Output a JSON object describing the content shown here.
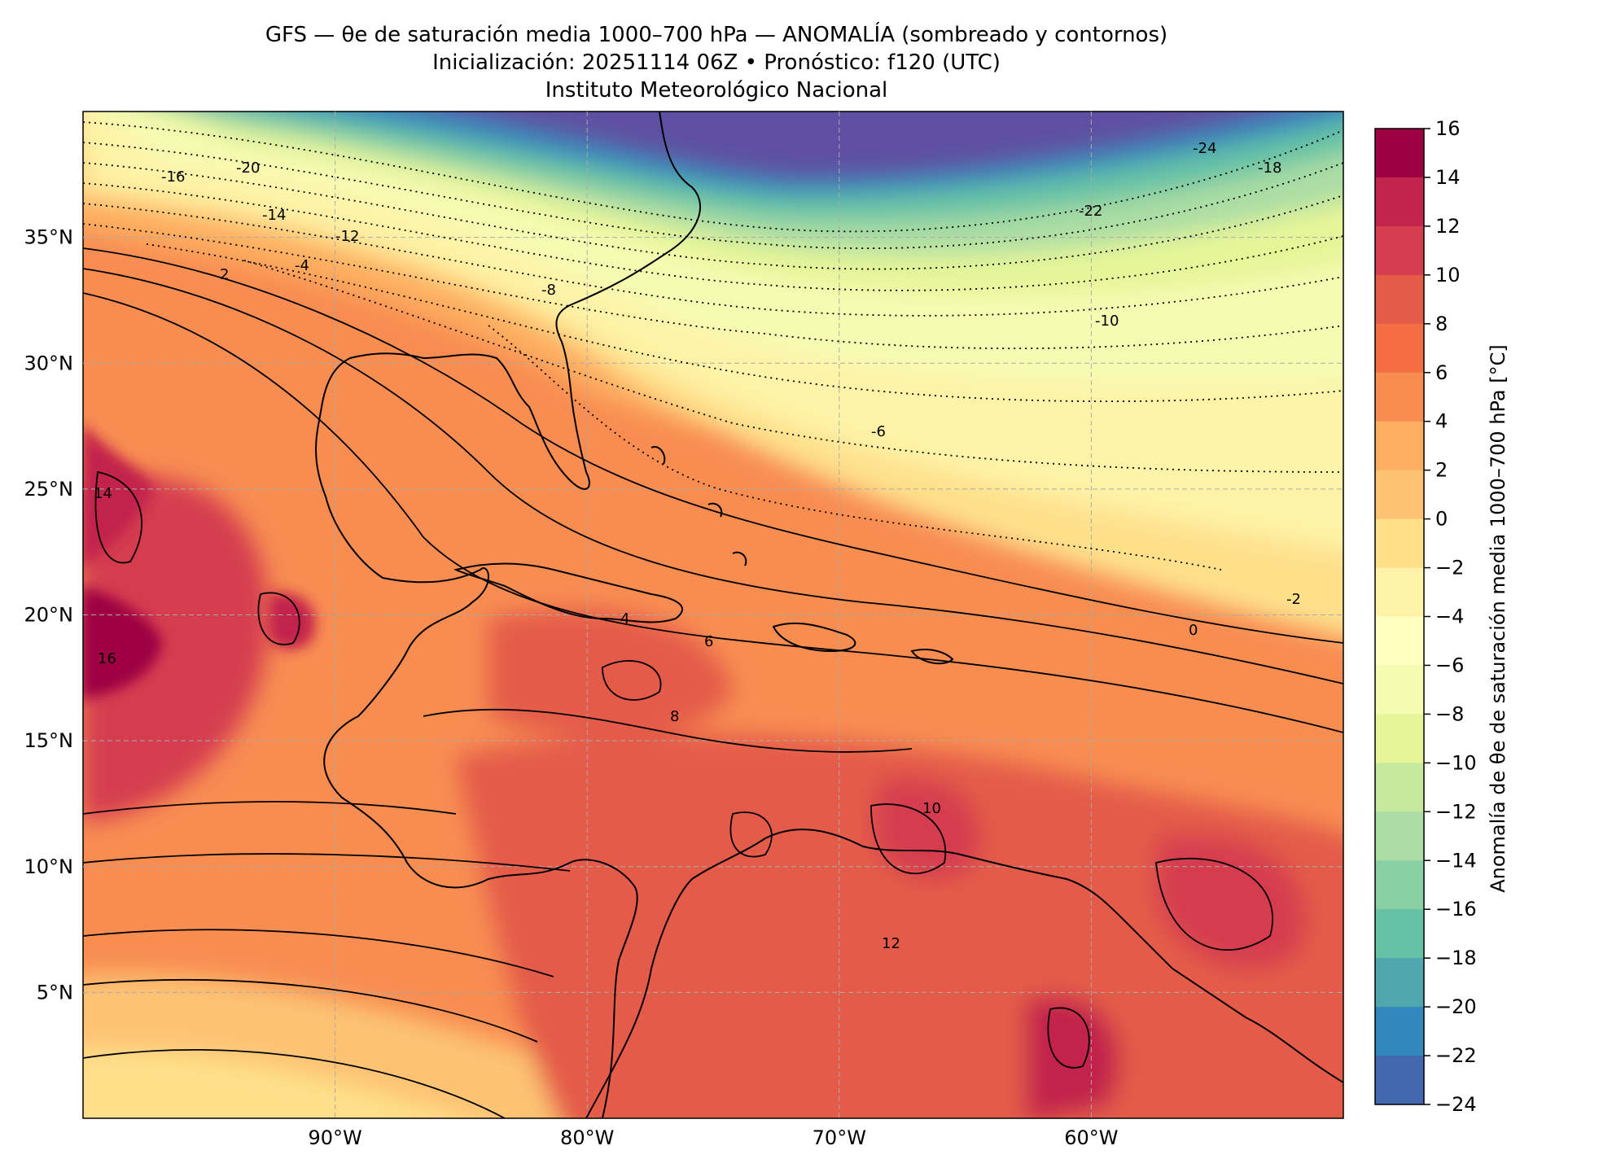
{
  "title": {
    "line1": "GFS — θe de saturación media 1000–700 hPa — ANOMALÍA (sombreado y contornos)",
    "line2": "Inicialización: 20251114 06Z   •   Pronóstico: f120 (UTC)",
    "line3": "Instituto Meteorológico Nacional"
  },
  "map": {
    "lon_range": [
      -100,
      -50
    ],
    "lat_range": [
      0,
      40
    ],
    "lat_ticks": [
      "35°N",
      "30°N",
      "25°N",
      "20°N",
      "15°N",
      "10°N",
      "5°N"
    ],
    "lat_tick_values": [
      35,
      30,
      25,
      20,
      15,
      10,
      5
    ],
    "lon_ticks": [
      "90°W",
      "80°W",
      "70°W",
      "60°W"
    ],
    "lon_tick_values": [
      -90,
      -80,
      -70,
      -60
    ],
    "gridlines": true
  },
  "colorbar": {
    "label": "Anomalía de θe de saturación media 1000–700 hPa [°C]",
    "tick_labels": [
      "16",
      "14",
      "12",
      "10",
      "8",
      "6",
      "4",
      "2",
      "0",
      "−2",
      "−4",
      "−6",
      "−8",
      "−10",
      "−12",
      "−14",
      "−16",
      "−18",
      "−20",
      "−22",
      "−24"
    ],
    "levels": [
      16,
      14,
      12,
      10,
      8,
      6,
      4,
      2,
      0,
      -2,
      -4,
      -6,
      -8,
      -10,
      -12,
      -14,
      -16,
      -18,
      -20,
      -22,
      -24
    ],
    "colors": [
      "#9e0142",
      "#c2244b",
      "#d53e4f",
      "#e45c48",
      "#f46d43",
      "#f88d52",
      "#fdae61",
      "#fdc373",
      "#fee08b",
      "#fef3a8",
      "#ffffbf",
      "#f6fbb2",
      "#e6f598",
      "#c7e99d",
      "#abdda4",
      "#89d0a4",
      "#66c2a5",
      "#4fa6ac",
      "#3288bd",
      "#4468b0",
      "#5e4fa2"
    ]
  },
  "contour_labels": [
    "-24",
    "-18",
    "-22",
    "-20",
    "-16",
    "-14",
    "-12",
    "-10",
    "-8",
    "-6",
    "-4",
    "-2",
    "0",
    "2",
    "4",
    "6",
    "8",
    "10",
    "12",
    "14",
    "16"
  ]
}
